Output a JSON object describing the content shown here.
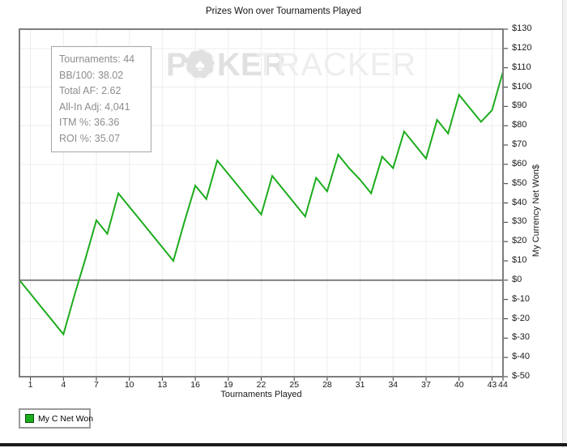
{
  "title": "Prizes Won over Tournaments Played",
  "stats_box": {
    "lines": [
      "Tournaments: 44",
      "BB/100: 38.02",
      "Total AF: 2.62",
      "All-In Adj: 4,041",
      "ITM %: 36.36",
      "ROI %: 35.07"
    ]
  },
  "watermark": {
    "text_bold_1": "P",
    "text_bold_2": "KER",
    "text_light": "TRACKER",
    "chip_icon": "poker-chip-icon",
    "chip_glyph": "♠"
  },
  "legend": {
    "label": "My C Net Won",
    "swatch_color": "#1cac1c"
  },
  "axes": {
    "x": {
      "label": "Tournaments Played",
      "ticks": [
        1,
        4,
        7,
        10,
        13,
        16,
        19,
        22,
        25,
        28,
        31,
        34,
        37,
        40,
        43,
        44
      ]
    },
    "y": {
      "label": "My Currency Net Won$",
      "ticks": [
        {
          "value": 130,
          "label": "$130"
        },
        {
          "value": 120,
          "label": "$120"
        },
        {
          "value": 110,
          "label": "$110"
        },
        {
          "value": 100,
          "label": "$100"
        },
        {
          "value": 90,
          "label": "$90"
        },
        {
          "value": 80,
          "label": "$80"
        },
        {
          "value": 70,
          "label": "$70"
        },
        {
          "value": 60,
          "label": "$60"
        },
        {
          "value": 50,
          "label": "$50"
        },
        {
          "value": 40,
          "label": "$40"
        },
        {
          "value": 30,
          "label": "$30"
        },
        {
          "value": 20,
          "label": "$20"
        },
        {
          "value": 10,
          "label": "$10"
        },
        {
          "value": 0,
          "label": "$0"
        },
        {
          "value": -10,
          "label": "$-10"
        },
        {
          "value": -20,
          "label": "$-20"
        },
        {
          "value": -30,
          "label": "$-30"
        },
        {
          "value": -40,
          "label": "$-40"
        },
        {
          "value": -50,
          "label": "$-50"
        }
      ],
      "grid_values": [
        120,
        100,
        80,
        60,
        40,
        20,
        -20,
        -40
      ]
    }
  },
  "chart_data": {
    "type": "line",
    "title": "Prizes Won over Tournaments Played",
    "xlabel": "Tournaments Played",
    "ylabel": "My Currency Net Won$",
    "xlim": [
      0,
      44
    ],
    "ylim": [
      -50,
      130
    ],
    "x_ticks": [
      1,
      4,
      7,
      10,
      13,
      16,
      19,
      22,
      25,
      28,
      31,
      34,
      37,
      40,
      43,
      44
    ],
    "y_tick_step": 10,
    "grid": true,
    "zero_line": true,
    "legend_position": "bottom-left",
    "series": [
      {
        "name": "My C Net Won",
        "color": "#1cac1c",
        "x": [
          0,
          1,
          2,
          3,
          4,
          5,
          6,
          7,
          8,
          9,
          10,
          11,
          12,
          13,
          14,
          15,
          16,
          17,
          18,
          19,
          20,
          21,
          22,
          23,
          24,
          25,
          26,
          27,
          28,
          29,
          30,
          31,
          32,
          33,
          34,
          35,
          36,
          37,
          38,
          39,
          40,
          41,
          42,
          43,
          44
        ],
        "values": [
          0,
          -7,
          -14,
          -21,
          -28,
          -8,
          11,
          31,
          24,
          45,
          38,
          31,
          24,
          17,
          10,
          30,
          49,
          42,
          62,
          55,
          48,
          41,
          34,
          54,
          47,
          40,
          33,
          53,
          46,
          65,
          58,
          52,
          45,
          64,
          58,
          77,
          70,
          63,
          83,
          76,
          96,
          89,
          82,
          88,
          108
        ]
      }
    ]
  },
  "colors": {
    "line": "#1cac1c",
    "grid": "#ededed",
    "plot_border": "#7e7e7e",
    "zero_line": "#808080",
    "tick_text": "#1a1a1a",
    "stats_text": "#8d8d8d",
    "watermark_bold": "#e1e1e1",
    "watermark_light": "#eeeeee",
    "bottom_bar": "#1a1a1a"
  }
}
